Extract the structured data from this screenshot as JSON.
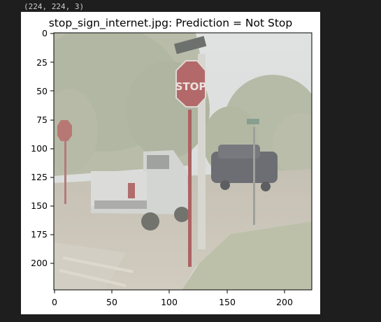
{
  "console": {
    "shape_text": "(224, 224, 3)"
  },
  "plot": {
    "title": "stop_sign_internet.jpg: Prediction = Not Stop",
    "image": {
      "description_icon": "street-scene-stop-sign-photo",
      "sign_text": "STOP"
    },
    "x_ticks": [
      "0",
      "50",
      "100",
      "150",
      "200"
    ],
    "y_ticks": [
      "0",
      "25",
      "50",
      "75",
      "100",
      "125",
      "150",
      "175",
      "200"
    ],
    "xlim": [
      0,
      224
    ],
    "ylim": [
      224,
      0
    ]
  }
}
